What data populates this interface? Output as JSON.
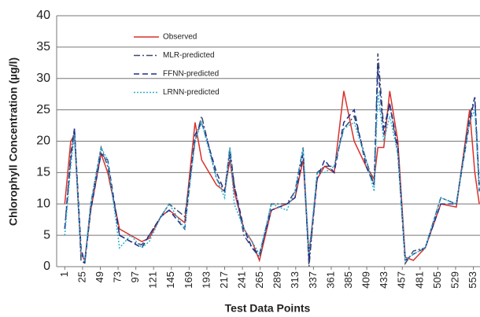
{
  "chart_data": {
    "type": "line",
    "x_label": "Test Data Points",
    "y_label": "Chlorophyll Concentration (µg/l)",
    "x": [
      1,
      9,
      14,
      23,
      28,
      36,
      50,
      59,
      75,
      90,
      105,
      115,
      131,
      142,
      163,
      177,
      186,
      206,
      217,
      224,
      230,
      243,
      254,
      264,
      280,
      301,
      312,
      323,
      331,
      342,
      352,
      365,
      378,
      392,
      408,
      419,
      424,
      432,
      440,
      451,
      461,
      472,
      488,
      509,
      530,
      548,
      555,
      561
    ],
    "series": [
      {
        "name": "Observed",
        "color": "#d9312b",
        "style": "solid",
        "values": [
          10,
          20,
          21,
          2,
          1,
          9,
          18,
          15,
          6,
          5,
          4,
          4.5,
          8,
          9,
          7,
          23,
          17,
          13,
          12,
          17,
          12,
          6,
          4,
          1,
          9,
          10,
          11,
          17,
          2,
          14,
          16,
          15,
          28,
          20,
          16,
          14,
          19,
          19,
          28,
          20,
          1.5,
          1,
          3,
          10,
          9.5,
          25,
          15,
          10
        ]
      },
      {
        "name": "MLR-predicted",
        "color": "#3c4a6e",
        "style": "dashdot",
        "values": [
          6,
          18,
          22,
          1,
          0.5,
          10,
          19,
          16,
          5,
          4,
          3.5,
          5,
          8,
          10,
          8,
          20,
          24,
          14,
          12,
          19,
          13,
          5,
          3,
          1.5,
          10,
          10,
          12,
          19,
          0,
          15,
          16,
          16,
          22,
          24,
          17,
          13,
          34,
          22,
          26,
          18,
          0.5,
          2.5,
          3,
          11,
          10,
          24,
          27,
          13
        ]
      },
      {
        "name": "FFNN-predicted",
        "color": "#1f2f8a",
        "style": "dashed",
        "values": [
          6,
          17,
          22,
          3,
          0.5,
          9,
          18,
          17,
          5,
          4,
          3,
          5,
          8,
          9,
          6,
          21,
          23,
          15,
          12,
          18,
          13,
          6,
          3,
          2,
          9,
          10,
          11,
          18,
          1,
          14,
          17,
          15,
          23,
          25,
          16,
          13,
          32,
          21,
          26,
          19,
          1,
          2,
          3,
          10,
          10,
          23,
          27,
          12
        ]
      },
      {
        "name": "LRNN-predicted",
        "color": "#2ab0d0",
        "style": "dotted",
        "values": [
          5,
          16,
          21,
          2,
          1,
          10,
          19,
          17,
          3,
          5,
          3,
          4,
          8,
          10,
          6,
          20,
          23,
          14,
          11,
          19,
          10,
          6,
          4,
          2,
          10,
          9,
          12,
          19,
          2,
          15,
          15,
          16,
          22,
          23,
          17,
          12,
          28,
          20,
          24,
          18,
          1,
          2,
          3,
          11,
          10,
          23,
          25,
          12
        ]
      }
    ],
    "xlim": [
      -10,
      562
    ],
    "ylim": [
      0,
      40
    ],
    "xticks": [
      1,
      25,
      49,
      73,
      97,
      121,
      145,
      169,
      193,
      217,
      241,
      265,
      289,
      313,
      337,
      361,
      385,
      409,
      433,
      457,
      481,
      505,
      529,
      553
    ],
    "yticks": [
      0,
      5,
      10,
      15,
      20,
      25,
      30,
      35,
      40
    ],
    "grid": true,
    "legend": "upper left"
  }
}
